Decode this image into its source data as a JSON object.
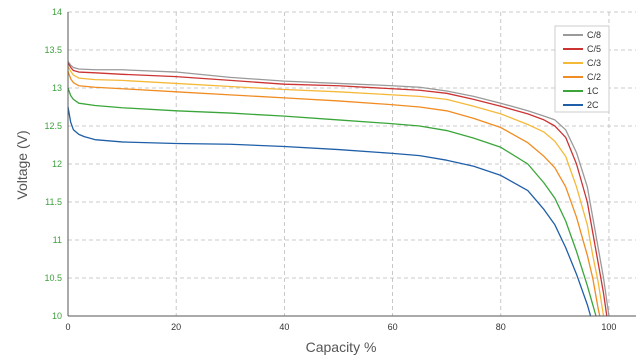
{
  "chart_data": {
    "type": "line",
    "xlabel": "Capacity %",
    "ylabel": "Voltage (V)",
    "xlim": [
      0,
      105
    ],
    "ylim": [
      10,
      14
    ],
    "xticks": [
      "0",
      "20",
      "40",
      "60",
      "80",
      "100"
    ],
    "yticks": [
      "10",
      "10.5",
      "11",
      "11.5",
      "12",
      "12.5",
      "13",
      "13.5",
      "14"
    ],
    "grid": true,
    "legend_position": "top-right",
    "colors": {
      "axis": "#555555",
      "grid": "#bbbbbb",
      "ytick_label": "#3ea03e"
    },
    "series": [
      {
        "name": "C/8",
        "color": "#9a9a9a",
        "points": [
          [
            0,
            13.35
          ],
          [
            0.5,
            13.3
          ],
          [
            1,
            13.27
          ],
          [
            2,
            13.25
          ],
          [
            5,
            13.24
          ],
          [
            10,
            13.24
          ],
          [
            20,
            13.21
          ],
          [
            30,
            13.14
          ],
          [
            40,
            13.09
          ],
          [
            50,
            13.06
          ],
          [
            60,
            13.03
          ],
          [
            65,
            13.01
          ],
          [
            70,
            12.96
          ],
          [
            75,
            12.89
          ],
          [
            80,
            12.8
          ],
          [
            85,
            12.7
          ],
          [
            88,
            12.63
          ],
          [
            90,
            12.58
          ],
          [
            92,
            12.45
          ],
          [
            94,
            12.15
          ],
          [
            96,
            11.7
          ],
          [
            97,
            11.3
          ],
          [
            98,
            10.9
          ],
          [
            99,
            10.5
          ],
          [
            100,
            10.0
          ]
        ]
      },
      {
        "name": "C/5",
        "color": "#cc3333",
        "points": [
          [
            0,
            13.33
          ],
          [
            0.5,
            13.27
          ],
          [
            1,
            13.23
          ],
          [
            2,
            13.21
          ],
          [
            5,
            13.2
          ],
          [
            10,
            13.18
          ],
          [
            20,
            13.15
          ],
          [
            30,
            13.1
          ],
          [
            40,
            13.05
          ],
          [
            50,
            13.03
          ],
          [
            60,
            12.99
          ],
          [
            65,
            12.97
          ],
          [
            70,
            12.93
          ],
          [
            75,
            12.85
          ],
          [
            80,
            12.76
          ],
          [
            85,
            12.66
          ],
          [
            88,
            12.58
          ],
          [
            90,
            12.5
          ],
          [
            92,
            12.35
          ],
          [
            94,
            12.0
          ],
          [
            96,
            11.5
          ],
          [
            97,
            11.1
          ],
          [
            98,
            10.7
          ],
          [
            99,
            10.3
          ],
          [
            99.6,
            10.0
          ]
        ]
      },
      {
        "name": "C/3",
        "color": "#f5b93a",
        "points": [
          [
            0,
            13.28
          ],
          [
            0.5,
            13.22
          ],
          [
            1,
            13.17
          ],
          [
            2,
            13.13
          ],
          [
            5,
            13.11
          ],
          [
            10,
            13.1
          ],
          [
            20,
            13.06
          ],
          [
            30,
            13.02
          ],
          [
            40,
            12.98
          ],
          [
            50,
            12.95
          ],
          [
            60,
            12.91
          ],
          [
            65,
            12.89
          ],
          [
            70,
            12.85
          ],
          [
            75,
            12.76
          ],
          [
            80,
            12.66
          ],
          [
            85,
            12.52
          ],
          [
            88,
            12.42
          ],
          [
            90,
            12.3
          ],
          [
            92,
            12.1
          ],
          [
            94,
            11.7
          ],
          [
            96,
            11.2
          ],
          [
            97,
            10.8
          ],
          [
            98,
            10.45
          ],
          [
            99,
            10.0
          ]
        ]
      },
      {
        "name": "C/2",
        "color": "#f08c22",
        "points": [
          [
            0,
            13.22
          ],
          [
            0.5,
            13.12
          ],
          [
            1,
            13.07
          ],
          [
            2,
            13.03
          ],
          [
            5,
            13.01
          ],
          [
            10,
            12.99
          ],
          [
            20,
            12.95
          ],
          [
            30,
            12.91
          ],
          [
            40,
            12.87
          ],
          [
            50,
            12.83
          ],
          [
            60,
            12.78
          ],
          [
            65,
            12.75
          ],
          [
            70,
            12.7
          ],
          [
            75,
            12.6
          ],
          [
            80,
            12.48
          ],
          [
            85,
            12.28
          ],
          [
            88,
            12.1
          ],
          [
            90,
            11.95
          ],
          [
            92,
            11.7
          ],
          [
            94,
            11.3
          ],
          [
            96,
            10.8
          ],
          [
            97,
            10.5
          ],
          [
            98,
            10.1
          ],
          [
            98.3,
            10.0
          ]
        ]
      },
      {
        "name": "1C",
        "color": "#3aa63a",
        "points": [
          [
            0,
            13.0
          ],
          [
            0.5,
            12.9
          ],
          [
            1,
            12.85
          ],
          [
            2,
            12.8
          ],
          [
            5,
            12.77
          ],
          [
            10,
            12.74
          ],
          [
            20,
            12.7
          ],
          [
            30,
            12.67
          ],
          [
            40,
            12.63
          ],
          [
            50,
            12.58
          ],
          [
            60,
            12.53
          ],
          [
            65,
            12.5
          ],
          [
            70,
            12.44
          ],
          [
            75,
            12.34
          ],
          [
            80,
            12.22
          ],
          [
            85,
            12.0
          ],
          [
            88,
            11.75
          ],
          [
            90,
            11.55
          ],
          [
            92,
            11.25
          ],
          [
            94,
            10.85
          ],
          [
            96,
            10.4
          ],
          [
            97,
            10.15
          ],
          [
            97.6,
            10.0
          ]
        ]
      },
      {
        "name": "2C",
        "color": "#1f5fa8",
        "points": [
          [
            0,
            12.75
          ],
          [
            0.5,
            12.55
          ],
          [
            1,
            12.45
          ],
          [
            2,
            12.39
          ],
          [
            3,
            12.36
          ],
          [
            5,
            12.32
          ],
          [
            10,
            12.29
          ],
          [
            20,
            12.27
          ],
          [
            30,
            12.26
          ],
          [
            40,
            12.23
          ],
          [
            50,
            12.19
          ],
          [
            60,
            12.14
          ],
          [
            65,
            12.11
          ],
          [
            70,
            12.05
          ],
          [
            75,
            11.97
          ],
          [
            80,
            11.85
          ],
          [
            85,
            11.65
          ],
          [
            88,
            11.4
          ],
          [
            90,
            11.2
          ],
          [
            92,
            10.9
          ],
          [
            94,
            10.55
          ],
          [
            96,
            10.15
          ],
          [
            96.6,
            10.0
          ]
        ]
      }
    ]
  }
}
